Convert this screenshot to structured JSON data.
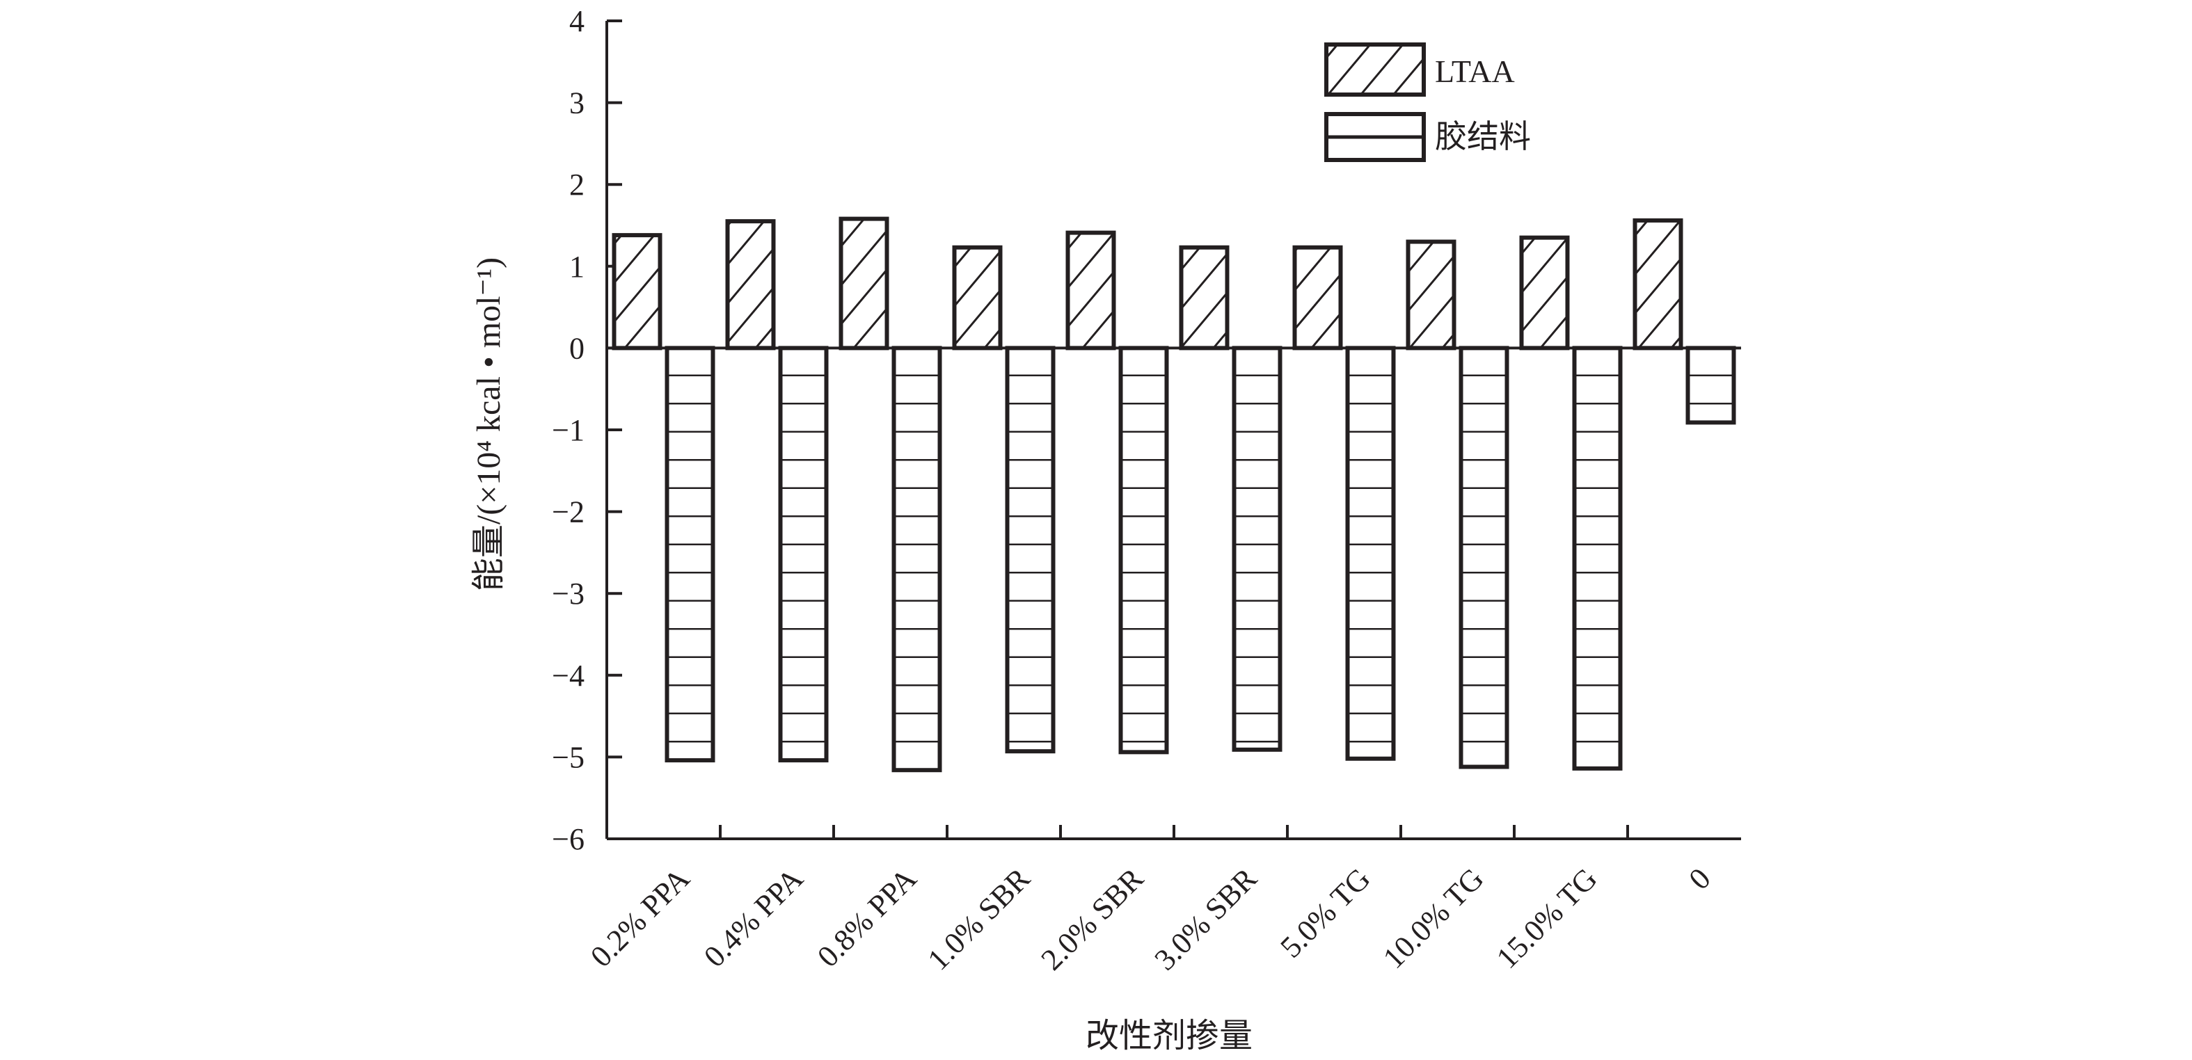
{
  "chart_data": {
    "type": "bar",
    "categories": [
      "0.2% PPA",
      "0.4% PPA",
      "0.8% PPA",
      "1.0% SBR",
      "2.0% SBR",
      "3.0% SBR",
      "5.0% TG",
      "10.0% TG",
      "15.0% TG",
      "0"
    ],
    "series": [
      {
        "name": "LTAA",
        "pattern": "diagonal-hatch",
        "values": [
          1.38,
          1.55,
          1.58,
          1.23,
          1.41,
          1.23,
          1.23,
          1.3,
          1.35,
          1.56
        ]
      },
      {
        "name": "胶结料",
        "pattern": "horizontal-lines",
        "values": [
          -5.04,
          -5.04,
          -5.16,
          -4.93,
          -4.94,
          -4.91,
          -5.02,
          -5.12,
          -5.14,
          -0.91
        ]
      }
    ],
    "xlabel": "改性剂掺量",
    "ylabel": "能量/(×10⁴ kcal • mol⁻¹)",
    "ylim": [
      -6,
      4
    ],
    "yticks": [
      "4",
      "3",
      "2",
      "1",
      "0",
      "−1",
      "−2",
      "−3",
      "−4",
      "−5",
      "−6"
    ],
    "grid": false,
    "legend_position": "top-right",
    "colors": {
      "stroke": "#231f20",
      "fill": "#ffffff"
    }
  }
}
